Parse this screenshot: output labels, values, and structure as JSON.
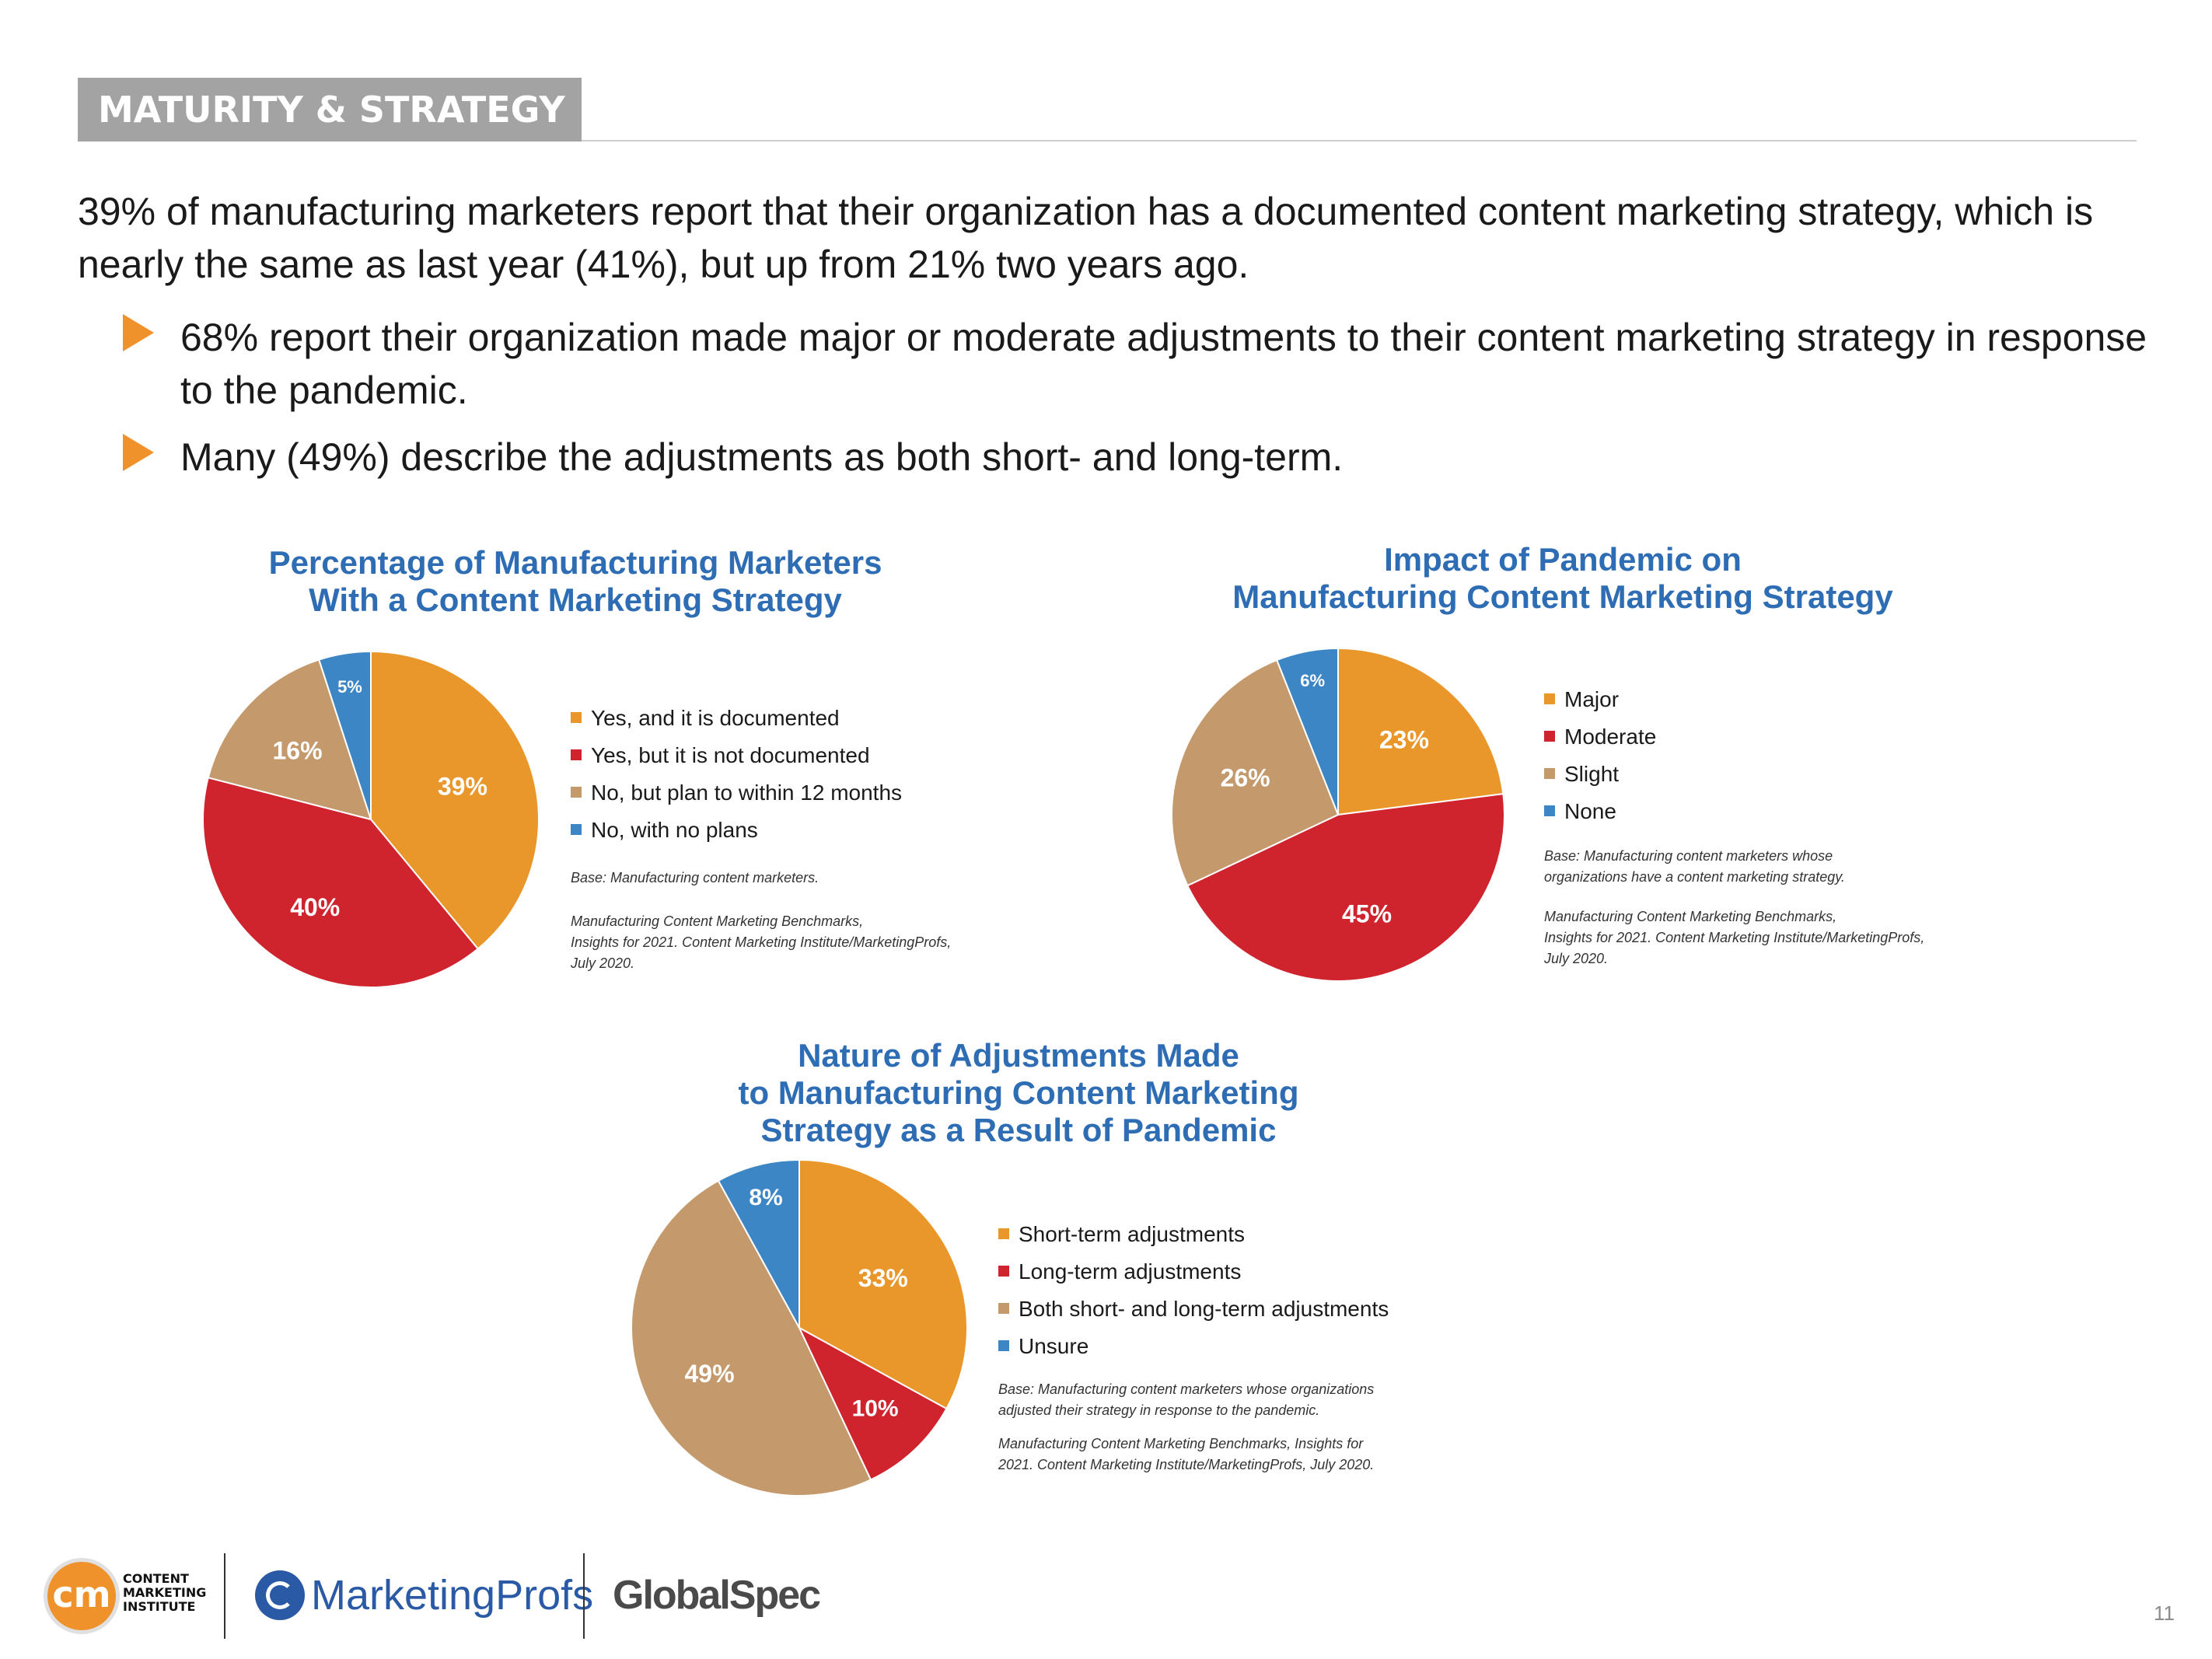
{
  "header": {
    "section_label": "MATURITY & STRATEGY"
  },
  "intro": "39% of manufacturing marketers report that their organization has a documented content marketing strategy, which is nearly the same as last year (41%), but up from 21% two years ago.",
  "bullets": [
    "68% report their organization made major or moderate adjustments to their content marketing strategy in response to the pandemic.",
    "Many (49%) describe the adjustments as both short- and long-term."
  ],
  "colors": {
    "orange": "#e9962a",
    "red": "#cf232e",
    "tan": "#c49a6c",
    "blue": "#3d86c6",
    "title_blue": "#2e6db4",
    "bullet_orange": "#f0922b"
  },
  "chart_data": [
    {
      "type": "pie",
      "title_lines": [
        "Percentage of Manufacturing Marketers",
        "With a Content Marketing Strategy"
      ],
      "categories": [
        "Yes, and it is documented",
        "Yes, but it is not documented",
        "No, but plan to within 12 months",
        "No, with no plans"
      ],
      "values": [
        39,
        40,
        16,
        5
      ],
      "labels": [
        "39%",
        "40%",
        "16%",
        "5%"
      ],
      "colors": [
        "#e9962a",
        "#cf232e",
        "#c49a6c",
        "#3d86c6"
      ],
      "legend": "right",
      "base_note": [
        "Base: Manufacturing content marketers."
      ],
      "source_note": [
        "Manufacturing Content Marketing Benchmarks,",
        "Insights for 2021. Content Marketing Institute/MarketingProfs,",
        "July 2020."
      ]
    },
    {
      "type": "pie",
      "title_lines": [
        "Impact of Pandemic on",
        "Manufacturing Content Marketing Strategy"
      ],
      "categories": [
        "Major",
        "Moderate",
        "Slight",
        "None"
      ],
      "values": [
        23,
        45,
        26,
        6
      ],
      "labels": [
        "23%",
        "45%",
        "26%",
        "6%"
      ],
      "colors": [
        "#e9962a",
        "#cf232e",
        "#c49a6c",
        "#3d86c6"
      ],
      "legend": "right",
      "base_note": [
        "Base: Manufacturing content marketers whose",
        "organizations have a content marketing strategy."
      ],
      "source_note": [
        "Manufacturing Content Marketing Benchmarks,",
        "Insights for 2021. Content Marketing Institute/MarketingProfs,",
        "July 2020."
      ]
    },
    {
      "type": "pie",
      "title_lines": [
        "Nature of Adjustments Made",
        "to Manufacturing Content Marketing",
        "Strategy as a Result of Pandemic"
      ],
      "categories": [
        "Short-term adjustments",
        "Long-term adjustments",
        "Both short- and long-term adjustments",
        "Unsure"
      ],
      "values": [
        33,
        10,
        49,
        8
      ],
      "labels": [
        "33%",
        "10%",
        "49%",
        "8%"
      ],
      "colors": [
        "#e9962a",
        "#cf232e",
        "#c49a6c",
        "#3d86c6"
      ],
      "legend": "right",
      "base_note": [
        "Base: Manufacturing content marketers whose organizations",
        "adjusted their strategy in response to the pandemic."
      ],
      "source_note": [
        "Manufacturing Content Marketing Benchmarks, Insights for",
        "2021. Content Marketing Institute/MarketingProfs, July 2020."
      ]
    }
  ],
  "footer": {
    "cmi_mark": "cm",
    "cmi_name_lines": [
      "CONTENT",
      "MARKETING",
      "INSTITUTE"
    ],
    "marketingprofs": "MarketingProfs",
    "globalspec": "GlobalSpec",
    "page_number": "11"
  }
}
